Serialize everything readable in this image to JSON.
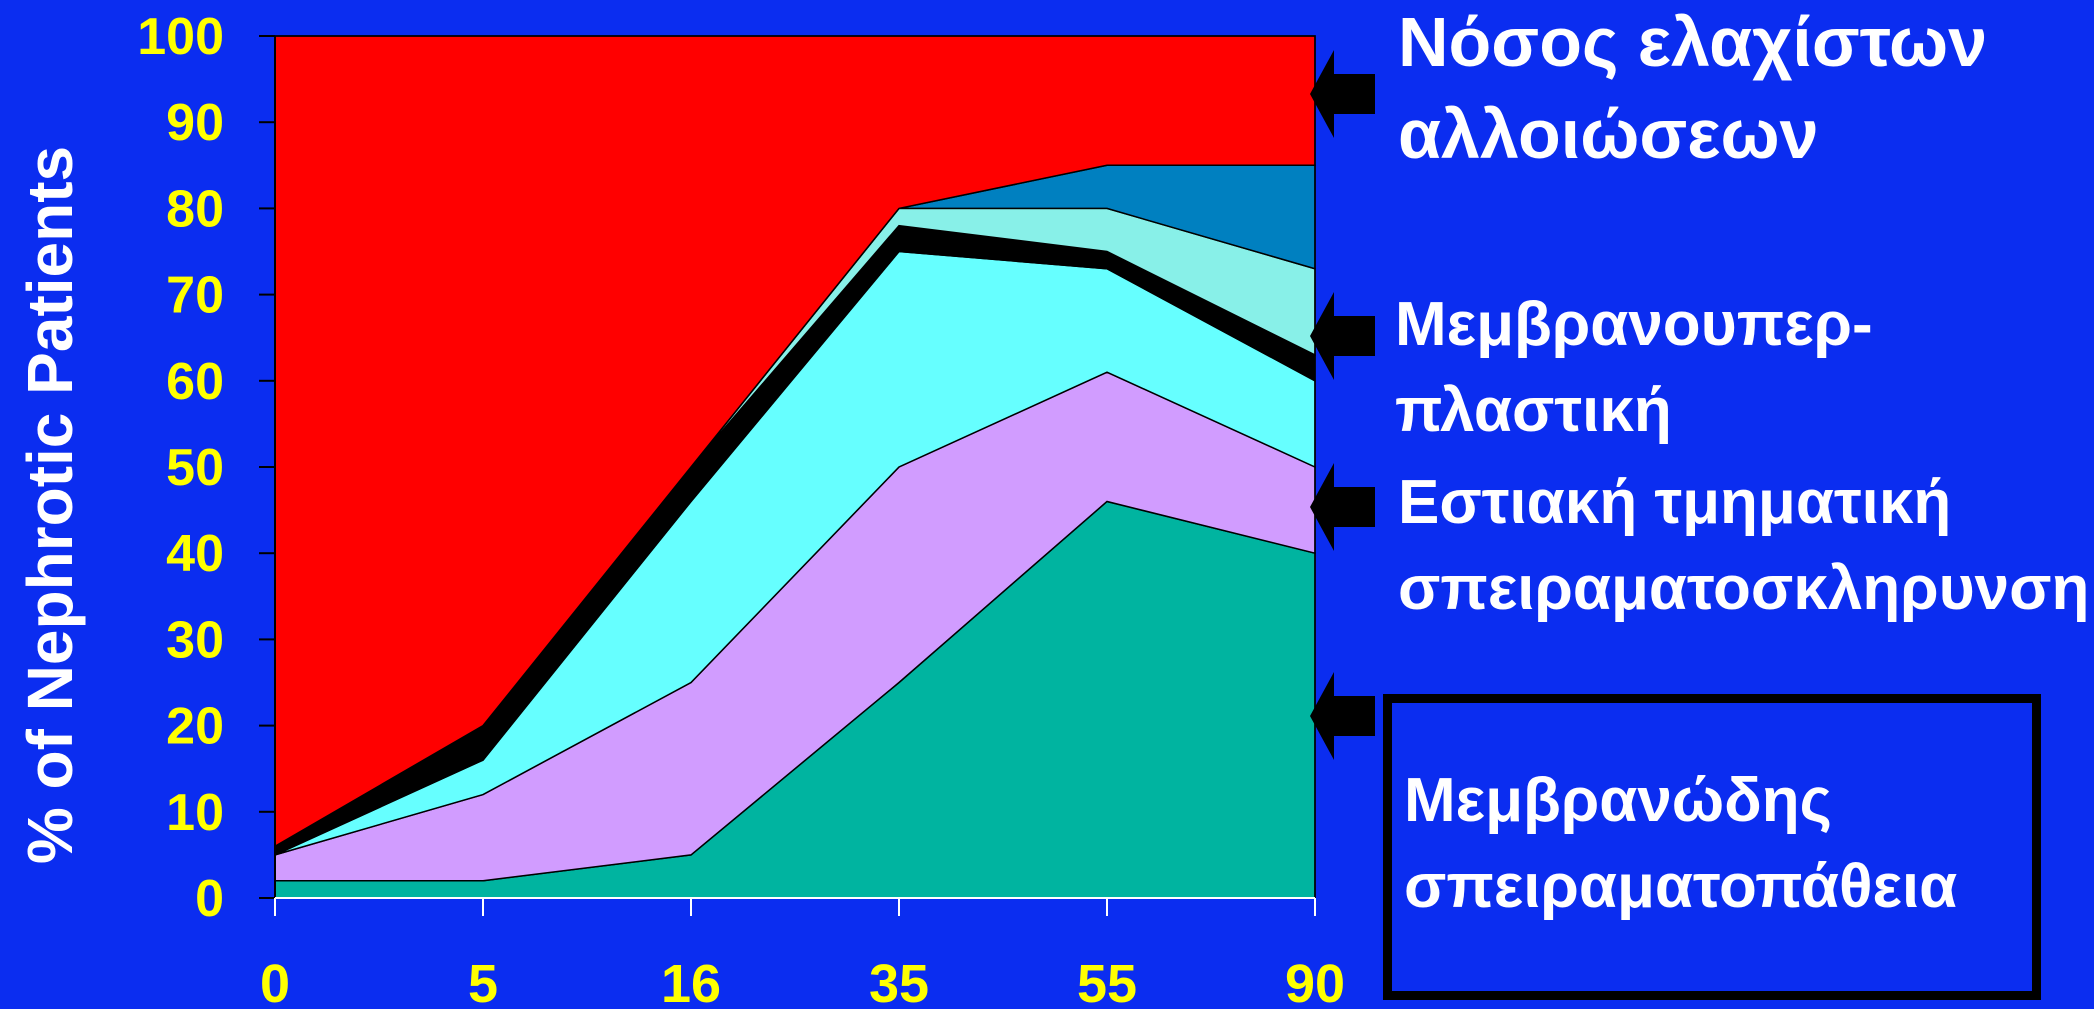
{
  "chart_data": {
    "type": "area",
    "stacked": true,
    "ylabel": "% of Nephrotic Patients",
    "xlabel": "",
    "x": [
      "0",
      "5",
      "16",
      "35",
      "55",
      "90"
    ],
    "ylim": [
      0,
      100
    ],
    "yticks": [
      "0",
      "10",
      "20",
      "30",
      "40",
      "50",
      "60",
      "70",
      "80",
      "90",
      "100"
    ],
    "series": [
      {
        "name": "Μεμβρανώδης σπειραματοπάθεια",
        "color": "#00b4a0",
        "upper": [
          2,
          2,
          5,
          25,
          46,
          40
        ]
      },
      {
        "name": "Εστιακή τμηματική σπειραματοσκληρυνση",
        "color": "#d19cff",
        "upper": [
          5,
          12,
          25,
          50,
          61,
          50
        ]
      },
      {
        "name": "",
        "color": "#66ffff",
        "upper": [
          5,
          16,
          46,
          75,
          73,
          60
        ]
      },
      {
        "name": "Μεμβρανουπερπλαστική",
        "color": "#000000",
        "upper": [
          6,
          20,
          50,
          78,
          75,
          63
        ]
      },
      {
        "name": "",
        "color": "#88f0e8",
        "upper": [
          6,
          20,
          50,
          80,
          80,
          73
        ]
      },
      {
        "name": "",
        "color": "#0080c0",
        "upper": [
          6,
          20,
          50,
          80,
          85,
          85
        ]
      },
      {
        "name": "Νόσος ελαχίστων αλλοιώσεων",
        "color": "#ff0000",
        "upper": [
          100,
          100,
          100,
          100,
          100,
          100
        ]
      }
    ],
    "grid": false,
    "legend": "right"
  },
  "labels": {
    "minimal_line1": "Νόσος ελαχίστων",
    "minimal_line2": "αλλοιώσεων",
    "mpgn_line1": "Μεμβρανουπερ-",
    "mpgn_line2": "πλαστική",
    "fsgs_line1": "Εστιακή τμηματική",
    "fsgs_line2": "σπειραματοσκληρυνση",
    "mgn_line1": "Μεμβρανώδης",
    "mgn_line2": "σπειραματοπάθεια"
  },
  "colors": {
    "background": "#0b2df0",
    "tick_text": "#ffff00",
    "label_text": "#ffffff",
    "arrow": "#000000"
  }
}
